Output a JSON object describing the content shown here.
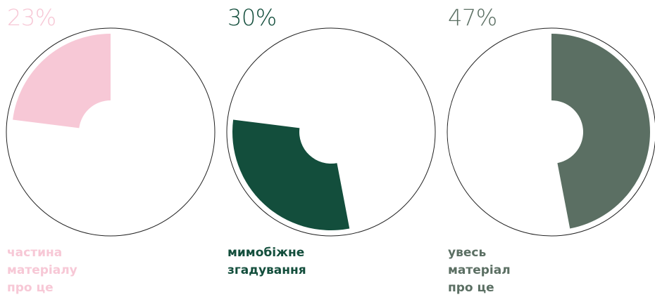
{
  "chart_data": {
    "type": "pie",
    "categories": [
      "частина\nматеріалу\nпро це",
      "мимобіжне\nзгадування",
      "увесь\nматеріал\nпро це"
    ],
    "values": [
      23,
      30,
      47
    ],
    "value_labels": [
      "23%",
      "30%",
      "47%"
    ],
    "colors": [
      "#f7c8d6",
      "#134e3c",
      "#5b6f63"
    ]
  }
}
